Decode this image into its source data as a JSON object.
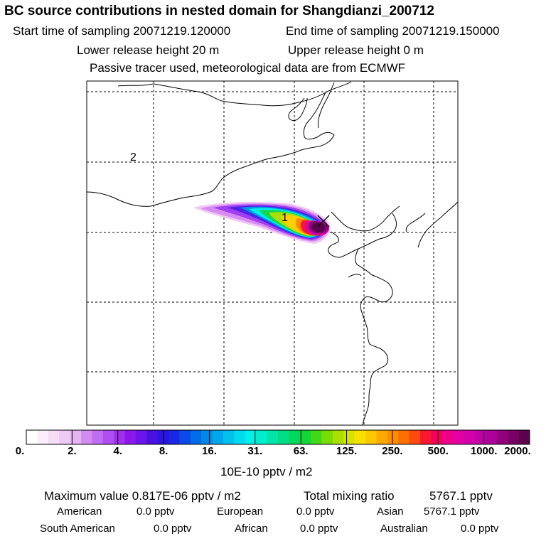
{
  "header": {
    "title": "BC  source contributions in nested domain for Shangdianzi_200712",
    "start_label": "Start time of sampling 20071219.120000",
    "end_label": "End time of sampling 20071219.150000",
    "lower_label": "Lower release height   20 m",
    "upper_label": "Upper release height    0 m",
    "tracer_label": "Passive tracer used, meteorological data are from ECMWF"
  },
  "map": {
    "labels": {
      "point1": "1",
      "point2": "2"
    }
  },
  "colorbar": {
    "ticks": [
      "0.",
      "2.",
      "4.",
      "8.",
      "16.",
      "31.",
      "63.",
      "125.",
      "250.",
      "500.",
      "1000.",
      "2000."
    ],
    "unit": "10E-10 pptv / m2",
    "colors": [
      "#ffffff",
      "#fbeefb",
      "#f6dcf6",
      "#eecbf2",
      "#e4b6f0",
      "#d18cf0",
      "#c06cf0",
      "#b04ef2",
      "#a030ee",
      "#8c18ee",
      "#6a14e8",
      "#4a10e0",
      "#2c14e2",
      "#1a28e6",
      "#0c4ae8",
      "#006ce8",
      "#008ae8",
      "#00a6ea",
      "#00c2ec",
      "#00dcee",
      "#00f0ec",
      "#00eecc",
      "#00e6a8",
      "#00dc84",
      "#00d85e",
      "#10d63a",
      "#40d818",
      "#78dc08",
      "#a8e000",
      "#d8e400",
      "#f8e000",
      "#fcc800",
      "#fcaa00",
      "#fc8c00",
      "#fc6e00",
      "#fc4a10",
      "#f81830",
      "#f4005c",
      "#ee0088",
      "#e200a4",
      "#d400ac",
      "#c200a8",
      "#ac0098",
      "#92007e",
      "#780064",
      "#5e0050"
    ]
  },
  "footer": {
    "max_label": "Maximum value  0.817E-06 pptv / m2",
    "total_label": "Total mixing ratio",
    "total_value": "5767.1 pptv",
    "regions": [
      {
        "name": "American",
        "value": "0.0 pptv"
      },
      {
        "name": "European",
        "value": "0.0 pptv"
      },
      {
        "name": "Asian",
        "value": "5767.1 pptv"
      },
      {
        "name": "South American",
        "value": "0.0 pptv"
      },
      {
        "name": "African",
        "value": "0.0 pptv"
      },
      {
        "name": "Australian",
        "value": "0.0 pptv"
      }
    ]
  }
}
